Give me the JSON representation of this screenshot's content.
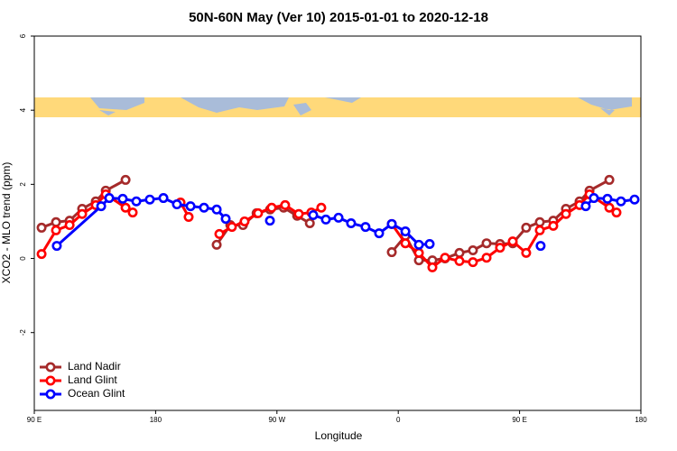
{
  "chart_data": {
    "type": "line",
    "title": "50N-60N May (Ver 10)   2015-01-01 to 2020-12-18",
    "x_label": "Longitude",
    "y_label": "XCO2 - MLO trend (ppm)",
    "xlim": [
      90,
      540
    ],
    "xticks": [
      {
        "value": 90,
        "label": "90 E"
      },
      {
        "value": 180,
        "label": "180"
      },
      {
        "value": 270,
        "label": "90 W"
      },
      {
        "value": 360,
        "label": "0"
      },
      {
        "value": 450,
        "label": "90 E"
      },
      {
        "value": 540,
        "label": "180"
      }
    ],
    "ylim": [
      -4.1,
      6
    ],
    "yticks": [
      -2,
      0,
      2,
      4,
      6
    ],
    "legend": "bottom-left",
    "series": [
      {
        "name": "Land Nadir",
        "color": "#a52a2a",
        "x": [
          95.4,
          106.1,
          116.2,
          125.5,
          135.6,
          143,
          157.7,
          null,
          225.3,
          235.4,
          244.8,
          254.9,
          264.9,
          275,
          285,
          294.4,
          null,
          355.2,
          365.3,
          375.3,
          385.3,
          394.7,
          405.4,
          415.4,
          425.5,
          435.5,
          444.9,
          454.9,
          465,
          475,
          484.4,
          494.5,
          501.9,
          516.6
        ],
        "values": [
          0.83,
          0.98,
          1.02,
          1.34,
          1.54,
          1.83,
          2.12,
          null,
          0.37,
          0.9,
          0.9,
          1.22,
          1.32,
          1.37,
          1.15,
          0.95,
          null,
          0.17,
          0.61,
          -0.05,
          -0.05,
          0,
          0.15,
          0.22,
          0.41,
          0.39,
          0.41,
          0.83,
          0.98,
          1.02,
          1.34,
          1.54,
          1.83,
          2.12
        ]
      },
      {
        "name": "Land Glint",
        "color": "#ff0000",
        "x": [
          95.4,
          106.1,
          116.2,
          125.5,
          135.6,
          143,
          157.7,
          163,
          null,
          198.5,
          204.5,
          null,
          227.3,
          236.6,
          246,
          256,
          266.1,
          276.1,
          286.2,
          295.5,
          302.9,
          null,
          355.2,
          365.3,
          375.3,
          385.3,
          394.7,
          405.4,
          415.4,
          425.5,
          435.5,
          444.9,
          454.9,
          465,
          475,
          484.4,
          494.5,
          501.9,
          516.6,
          521.9
        ],
        "values": [
          0.12,
          0.76,
          0.9,
          1.2,
          1.44,
          1.73,
          1.37,
          1.24,
          null,
          1.51,
          1.12,
          null,
          0.66,
          0.85,
          1.0,
          1.22,
          1.37,
          1.44,
          1.2,
          1.24,
          1.37,
          null,
          0.93,
          0.41,
          0.15,
          -0.24,
          0.02,
          -0.07,
          -0.1,
          0.02,
          0.29,
          0.46,
          0.15,
          0.76,
          0.88,
          1.2,
          1.44,
          1.73,
          1.37,
          1.24
        ]
      },
      {
        "name": "Ocean Glint",
        "color": "#0000ff",
        "x": [
          106.7,
          139.6,
          145.6,
          155.6,
          165.7,
          175.7,
          185.8,
          195.8,
          205.9,
          215.9,
          225.3,
          232,
          null,
          264.8,
          null,
          296.9,
          306.3,
          315.7,
          325,
          335.7,
          345.8,
          355.2,
          365.3,
          375.3,
          383.3,
          null,
          465.6,
          null,
          499.1,
          505.1,
          515.2,
          525.2,
          535.3
        ],
        "values": [
          0.34,
          1.41,
          1.63,
          1.61,
          1.54,
          1.59,
          1.63,
          1.46,
          1.41,
          1.37,
          1.32,
          1.07,
          null,
          1.02,
          null,
          1.17,
          1.05,
          1.1,
          0.95,
          0.85,
          0.68,
          0.93,
          0.73,
          0.37,
          0.39,
          null,
          0.34,
          null,
          1.41,
          1.63,
          1.61,
          1.54,
          1.59
        ]
      }
    ]
  }
}
